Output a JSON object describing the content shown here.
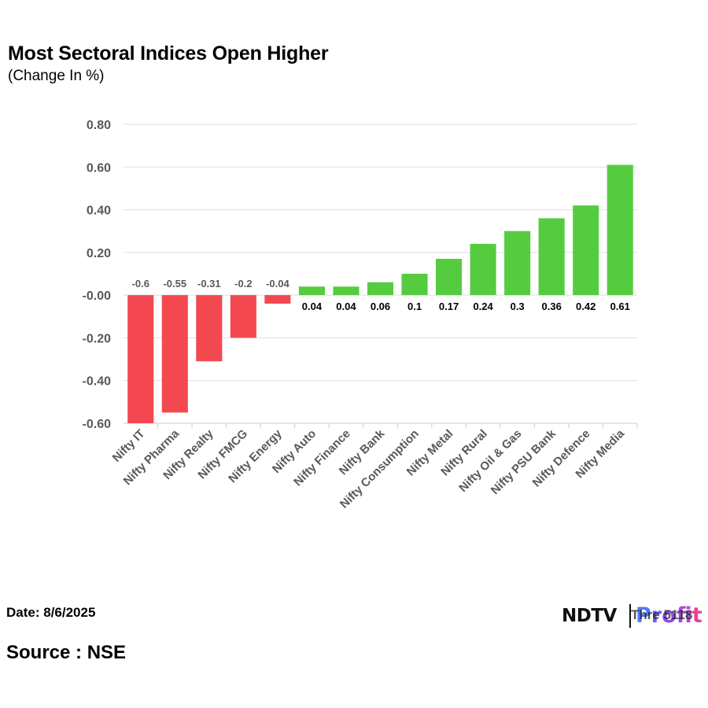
{
  "title": "Most Sectoral Indices Open Higher",
  "subtitle": "(Change In %)",
  "footer": {
    "date": "Date: 8/6/2025",
    "source": "Source : NSE",
    "logo_ndtv": "NDTV",
    "logo_profit": [
      "P",
      "r",
      "o",
      "f",
      "i",
      "t"
    ],
    "logo_overlay": "Thre 5118"
  },
  "colors": {
    "positive": "#55cc3f",
    "negative": "#f44851",
    "grid": "#dddddd",
    "axis": "#cccccc",
    "tick_text": "#595959"
  },
  "chart_data": {
    "type": "bar",
    "title": "Most Sectoral Indices Open Higher",
    "ylabel": "Change In %",
    "xlabel": "",
    "ylim": [
      -0.6,
      0.8
    ],
    "yticks": [
      0.8,
      0.6,
      0.4,
      0.2,
      0.0,
      -0.2,
      -0.4,
      -0.6
    ],
    "ytick_labels": [
      "0.80",
      "0.60",
      "0.40",
      "0.20",
      "-0.00",
      "-0.20",
      "-0.40",
      "-0.60"
    ],
    "grid": true,
    "categories": [
      "Nifty IT",
      "Nifty Pharma",
      "Nifty Realty",
      "Nifty FMCG",
      "Nifty Energy",
      "Nifty Auto",
      "Nifty Finance",
      "Nifty Bank",
      "Nifty Consumption",
      "Nifty Metal",
      "Nifty Rural",
      "Nifty Oil & Gas",
      "Nifty PSU Bank",
      "Nifty Defence",
      "Nifty Media"
    ],
    "values": [
      -0.6,
      -0.55,
      -0.31,
      -0.2,
      -0.04,
      0.04,
      0.04,
      0.06,
      0.1,
      0.17,
      0.24,
      0.3,
      0.36,
      0.42,
      0.61
    ],
    "data_labels": [
      "-0.6",
      "-0.55",
      "-0.31",
      "-0.2",
      "-0.04",
      "0.04",
      "0.04",
      "0.06",
      "0.1",
      "0.17",
      "0.24",
      "0.3",
      "0.36",
      "0.42",
      "0.61"
    ]
  }
}
